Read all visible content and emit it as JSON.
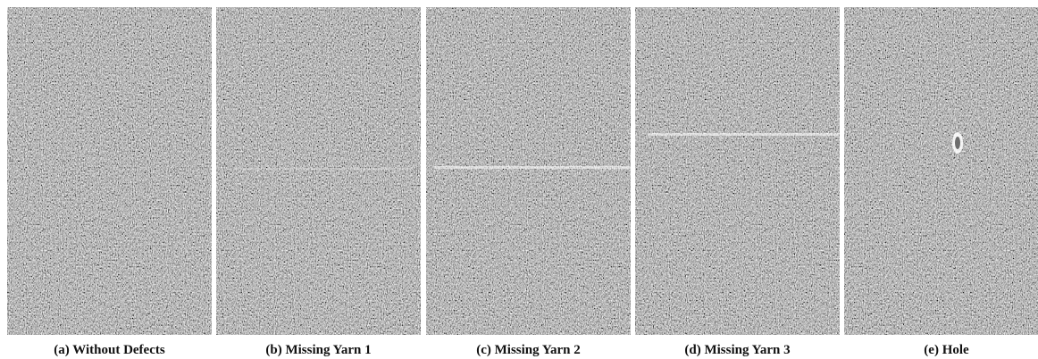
{
  "panels": [
    {
      "caption": "(a) Without Defects"
    },
    {
      "caption": "(b) Missing Yarn 1"
    },
    {
      "caption": "(c) Missing Yarn 2"
    },
    {
      "caption": "(d) Missing Yarn 3"
    },
    {
      "caption": "(e) Hole"
    }
  ]
}
